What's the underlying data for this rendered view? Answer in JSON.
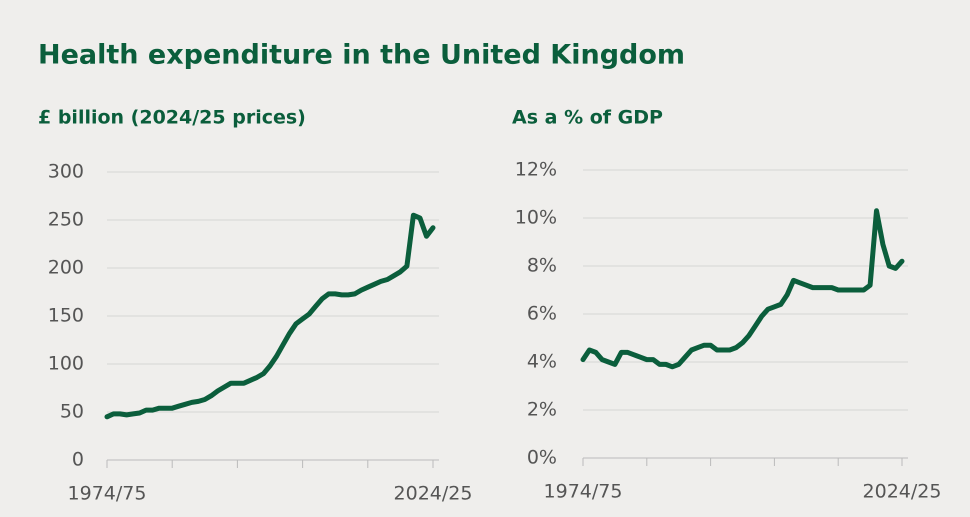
{
  "title": "Health expenditure in the United Kingdom",
  "chart_data": [
    {
      "type": "line",
      "title": "£ billion (2024/25 prices)",
      "color": "#0b5e3c",
      "grid": true,
      "categories": [
        "1974/75",
        null,
        null,
        null,
        null,
        null,
        null,
        null,
        null,
        null,
        null,
        null,
        null,
        null,
        null,
        null,
        null,
        null,
        null,
        null,
        null,
        null,
        null,
        null,
        null,
        null,
        null,
        null,
        null,
        null,
        null,
        null,
        null,
        null,
        null,
        null,
        null,
        null,
        null,
        null,
        null,
        null,
        null,
        null,
        null,
        null,
        null,
        null,
        null,
        null,
        "2024/25"
      ],
      "values": [
        45,
        48,
        48,
        47,
        48,
        49,
        52,
        52,
        54,
        54,
        54,
        56,
        58,
        60,
        61,
        63,
        67,
        72,
        76,
        80,
        80,
        80,
        83,
        86,
        90,
        98,
        108,
        120,
        132,
        142,
        147,
        152,
        160,
        168,
        173,
        173,
        172,
        172,
        173,
        177,
        180,
        183,
        186,
        188,
        192,
        196,
        202,
        255,
        252,
        233,
        242
      ],
      "ylim": [
        0,
        300
      ],
      "yticks": [
        0,
        50,
        100,
        150,
        200,
        250,
        300
      ]
    },
    {
      "type": "line",
      "title": "As a % of GDP",
      "color": "#0b5e3c",
      "grid": true,
      "categories": [
        "1974/75",
        null,
        null,
        null,
        null,
        null,
        null,
        null,
        null,
        null,
        null,
        null,
        null,
        null,
        null,
        null,
        null,
        null,
        null,
        null,
        null,
        null,
        null,
        null,
        null,
        null,
        null,
        null,
        null,
        null,
        null,
        null,
        null,
        null,
        null,
        null,
        null,
        null,
        null,
        null,
        null,
        null,
        null,
        null,
        null,
        null,
        null,
        null,
        null,
        null,
        "2024/25"
      ],
      "values": [
        4.1,
        4.5,
        4.4,
        4.1,
        4.0,
        3.9,
        4.4,
        4.4,
        4.3,
        4.2,
        4.1,
        4.1,
        3.9,
        3.9,
        3.8,
        3.9,
        4.2,
        4.5,
        4.6,
        4.7,
        4.7,
        4.5,
        4.5,
        4.5,
        4.6,
        4.8,
        5.1,
        5.5,
        5.9,
        6.2,
        6.3,
        6.4,
        6.8,
        7.4,
        7.3,
        7.2,
        7.1,
        7.1,
        7.1,
        7.1,
        7.0,
        7.0,
        7.0,
        7.0,
        7.0,
        7.2,
        10.3,
        8.9,
        8.0,
        7.9,
        8.2
      ],
      "ylim": [
        0,
        12
      ],
      "yticks": [
        {
          "value": 0,
          "label": "0%"
        },
        {
          "value": 2,
          "label": "2%"
        },
        {
          "value": 4,
          "label": "4%"
        },
        {
          "value": 6,
          "label": "6%"
        },
        {
          "value": 8,
          "label": "8%"
        },
        {
          "value": 10,
          "label": "10%"
        },
        {
          "value": 12,
          "label": "12%"
        }
      ]
    }
  ]
}
